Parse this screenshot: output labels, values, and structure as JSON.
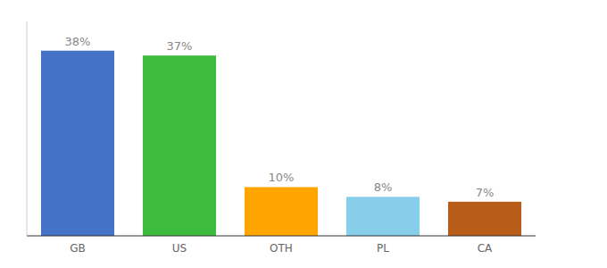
{
  "chart_data": {
    "type": "bar",
    "categories": [
      "GB",
      "US",
      "OTH",
      "PL",
      "CA"
    ],
    "values": [
      38,
      37,
      10,
      8,
      7
    ],
    "value_labels": [
      "38%",
      "37%",
      "10%",
      "8%",
      "7%"
    ],
    "colors": [
      "#4472C4",
      "#3DBB3D",
      "#FFA500",
      "#87CEEB",
      "#B85C1A"
    ],
    "ylim": [
      0,
      44
    ],
    "data_labels": true,
    "tick_labels": "x",
    "grid": false
  }
}
